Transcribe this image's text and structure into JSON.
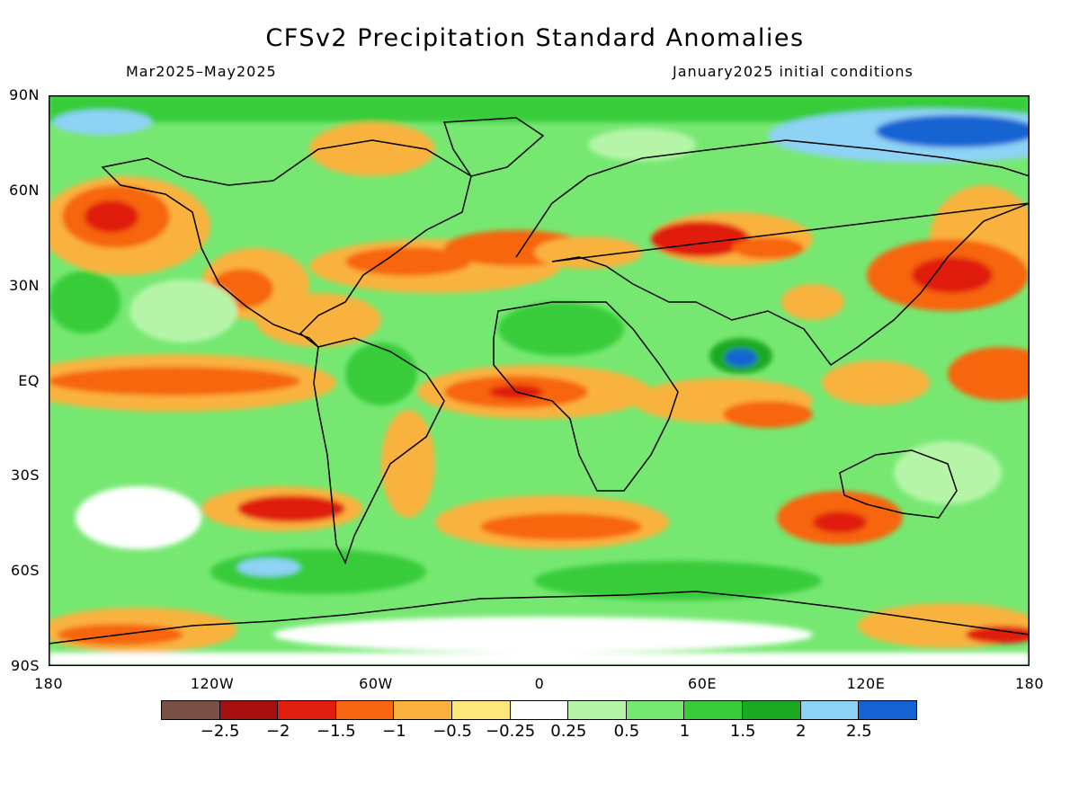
{
  "title": "CFSv2 Precipitation Standard Anomalies",
  "subtitle_left": "Mar2025–May2025",
  "subtitle_right": "January2025 initial conditions",
  "lat_labels": [
    "90N",
    "60N",
    "30N",
    "EQ",
    "30S",
    "60S",
    "90S"
  ],
  "lon_labels": [
    "180",
    "120W",
    "60W",
    "0",
    "60E",
    "120E",
    "180"
  ],
  "colorbar": {
    "colors": [
      "#7a4f46",
      "#a50f0f",
      "#e01e10",
      "#f76510",
      "#f9b23e",
      "#fde67a",
      "#ffffff",
      "#b6f5a8",
      "#76e872",
      "#38cc3a",
      "#1ba823",
      "#8ed2f6",
      "#1563d2"
    ],
    "labels": [
      "−2.5",
      "−2",
      "−1.5",
      "−1",
      "−0.5",
      "−0.25",
      "0.25",
      "0.5",
      "1",
      "1.5",
      "2",
      "2.5"
    ]
  }
}
